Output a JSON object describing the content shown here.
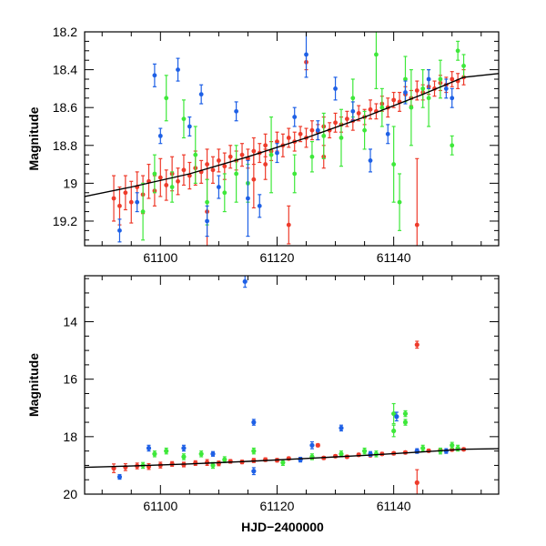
{
  "chart_data": [
    {
      "type": "scatter",
      "panel": "top",
      "xlabel": "",
      "ylabel": "Magnitude",
      "xlim": [
        61087,
        61158
      ],
      "ylim": [
        19.33,
        18.2
      ],
      "y_inverted": true,
      "xticks": [
        61100,
        61120,
        61140
      ],
      "yticks": [
        18.2,
        18.4,
        18.6,
        18.8,
        19,
        19.2
      ],
      "ytick_labels": [
        "18.2",
        "18.4",
        "18.6",
        "18.8",
        "19",
        "19.2"
      ],
      "xtick_labels": [
        "61100",
        "61120",
        "61140"
      ],
      "model_curve": {
        "name": "model",
        "color": "#000000",
        "x": [
          61087,
          61095,
          61105,
          61115,
          61125,
          61135,
          61145,
          61152,
          61158
        ],
        "y": [
          19.07,
          19.02,
          18.95,
          18.86,
          18.76,
          18.65,
          18.53,
          18.44,
          18.42
        ]
      },
      "series": [
        {
          "name": "red",
          "color": "#ee3b2b",
          "x": [
            61092,
            61093,
            61094,
            61095,
            61096,
            61097,
            61098,
            61099,
            61100,
            61101,
            61102,
            61103,
            61104,
            61105,
            61106,
            61107,
            61108,
            61109,
            61110,
            61111,
            61112,
            61113,
            61114,
            61115,
            61116,
            61117,
            61118,
            61119,
            61120,
            61121,
            61122,
            61123,
            61124,
            61125,
            61126,
            61127,
            61128,
            61129,
            61130,
            61131,
            61132,
            61133,
            61134,
            61135,
            61136,
            61137,
            61138,
            61139,
            61140,
            61141,
            61142,
            61143,
            61144,
            61145,
            61146,
            61147,
            61148,
            61149,
            61150,
            61151,
            61152,
            61116,
            61122,
            61125,
            61144,
            61118,
            61128,
            61108
          ],
          "y": [
            19.08,
            19.12,
            19.05,
            19.1,
            19.02,
            19.06,
            18.99,
            19.04,
            18.97,
            19.01,
            18.95,
            18.99,
            18.93,
            18.96,
            18.92,
            18.94,
            18.9,
            18.93,
            18.88,
            18.91,
            18.86,
            18.88,
            18.85,
            18.87,
            18.83,
            18.84,
            18.8,
            18.83,
            18.78,
            18.8,
            18.76,
            18.78,
            18.74,
            18.76,
            18.72,
            18.73,
            18.7,
            18.72,
            18.68,
            18.69,
            18.66,
            18.67,
            18.63,
            18.65,
            18.61,
            18.62,
            18.58,
            18.6,
            18.56,
            18.57,
            18.53,
            18.55,
            18.51,
            18.52,
            18.49,
            18.5,
            18.47,
            18.48,
            18.45,
            18.46,
            18.44,
            18.98,
            19.22,
            18.36,
            19.22,
            18.9,
            18.86,
            19.15
          ],
          "err": [
            0.12,
            0.1,
            0.09,
            0.11,
            0.08,
            0.1,
            0.09,
            0.08,
            0.1,
            0.08,
            0.09,
            0.07,
            0.08,
            0.07,
            0.09,
            0.06,
            0.08,
            0.07,
            0.06,
            0.07,
            0.06,
            0.05,
            0.06,
            0.05,
            0.07,
            0.05,
            0.06,
            0.05,
            0.05,
            0.06,
            0.05,
            0.05,
            0.04,
            0.05,
            0.05,
            0.04,
            0.05,
            0.04,
            0.05,
            0.04,
            0.04,
            0.05,
            0.04,
            0.04,
            0.05,
            0.04,
            0.04,
            0.05,
            0.04,
            0.05,
            0.04,
            0.04,
            0.05,
            0.04,
            0.04,
            0.04,
            0.04,
            0.04,
            0.04,
            0.04,
            0.04,
            0.15,
            0.1,
            0.04,
            0.35,
            0.08,
            0.06,
            0.25
          ]
        },
        {
          "name": "green",
          "color": "#3ee83a",
          "x": [
            61097,
            61099,
            61101,
            61102,
            61104,
            61106,
            61108,
            61111,
            61113,
            61115,
            61119,
            61123,
            61126,
            61128,
            61131,
            61133,
            61135,
            61137,
            61138,
            61140,
            61141,
            61142,
            61143,
            61145,
            61146,
            61148,
            61150,
            61151,
            61152
          ],
          "y": [
            19.15,
            18.95,
            18.55,
            19.02,
            18.66,
            18.85,
            19.1,
            19.05,
            18.95,
            19.0,
            18.85,
            18.95,
            18.86,
            18.75,
            18.76,
            18.55,
            18.72,
            18.32,
            18.6,
            18.9,
            19.1,
            18.45,
            18.6,
            18.5,
            18.55,
            18.45,
            18.8,
            18.3,
            18.38
          ],
          "err": [
            0.15,
            0.1,
            0.12,
            0.08,
            0.1,
            0.15,
            0.12,
            0.1,
            0.15,
            0.1,
            0.2,
            0.1,
            0.08,
            0.12,
            0.15,
            0.1,
            0.1,
            0.18,
            0.1,
            0.2,
            0.15,
            0.12,
            0.2,
            0.1,
            0.15,
            0.1,
            0.05,
            0.05,
            0.06
          ]
        },
        {
          "name": "blue",
          "color": "#1e60e6",
          "x": [
            61093,
            61096,
            61099,
            61100,
            61103,
            61105,
            61107,
            61108,
            61110,
            61113,
            61115,
            61117,
            61120,
            61123,
            61125,
            61127,
            61130,
            61133,
            61136,
            61139,
            61142,
            61146,
            61149,
            61150
          ],
          "y": [
            19.25,
            19.1,
            18.43,
            18.75,
            18.4,
            18.7,
            18.53,
            19.2,
            19.02,
            18.62,
            19.08,
            19.12,
            18.84,
            18.65,
            18.32,
            18.72,
            18.5,
            18.62,
            18.88,
            18.74,
            18.52,
            18.45,
            18.5,
            18.55
          ],
          "err": [
            0.06,
            0.05,
            0.06,
            0.04,
            0.06,
            0.05,
            0.05,
            0.08,
            0.06,
            0.05,
            0.2,
            0.06,
            0.05,
            0.05,
            0.12,
            0.05,
            0.06,
            0.05,
            0.06,
            0.05,
            0.06,
            0.05,
            0.05,
            0.05
          ]
        }
      ]
    },
    {
      "type": "scatter",
      "panel": "bottom",
      "xlabel": "HJD−2400000",
      "ylabel": "Magnitude",
      "xlim": [
        61087,
        61158
      ],
      "ylim": [
        20,
        12.4
      ],
      "y_inverted": true,
      "xticks": [
        61100,
        61120,
        61140
      ],
      "yticks": [
        14,
        16,
        18,
        20
      ],
      "ytick_labels": [
        "14",
        "16",
        "18",
        "20"
      ],
      "xtick_labels": [
        "61100",
        "61120",
        "61140"
      ],
      "model_curve": {
        "name": "model",
        "color": "#000000",
        "x": [
          61087,
          61095,
          61105,
          61115,
          61125,
          61135,
          61145,
          61152,
          61158
        ],
        "y": [
          19.07,
          19.02,
          18.95,
          18.86,
          18.76,
          18.65,
          18.53,
          18.44,
          18.42
        ]
      },
      "series": [
        {
          "name": "red",
          "color": "#ee3b2b",
          "x": [
            61092,
            61094,
            61096,
            61098,
            61100,
            61102,
            61104,
            61106,
            61108,
            61110,
            61112,
            61114,
            61116,
            61118,
            61120,
            61122,
            61124,
            61126,
            61128,
            61130,
            61132,
            61134,
            61136,
            61138,
            61140,
            61142,
            61144,
            61146,
            61148,
            61150,
            61152,
            61144,
            61144,
            61127
          ],
          "y": [
            19.1,
            19.06,
            19.02,
            19.04,
            18.99,
            18.95,
            18.97,
            18.92,
            18.9,
            18.93,
            18.86,
            18.88,
            18.83,
            18.8,
            18.82,
            18.76,
            18.78,
            18.72,
            18.74,
            18.68,
            18.7,
            18.63,
            18.65,
            18.6,
            18.58,
            18.55,
            18.51,
            18.49,
            18.47,
            18.45,
            18.44,
            14.8,
            19.6,
            18.3
          ],
          "err": [
            0.15,
            0.12,
            0.1,
            0.1,
            0.1,
            0.08,
            0.08,
            0.08,
            0.1,
            0.08,
            0.06,
            0.06,
            0.07,
            0.06,
            0.06,
            0.05,
            0.05,
            0.05,
            0.05,
            0.05,
            0.05,
            0.05,
            0.05,
            0.05,
            0.05,
            0.05,
            0.05,
            0.05,
            0.05,
            0.05,
            0.05,
            0.12,
            0.45,
            0.05
          ]
        },
        {
          "name": "green",
          "color": "#3ee83a",
          "x": [
            61097,
            61099,
            61101,
            61104,
            61107,
            61109,
            61111,
            61116,
            61121,
            61126,
            61131,
            61135,
            61137,
            61140,
            61140,
            61142,
            61142,
            61145,
            61148,
            61150,
            61151
          ],
          "y": [
            19.0,
            18.6,
            18.5,
            18.7,
            18.6,
            19.0,
            18.8,
            18.5,
            18.9,
            18.7,
            18.6,
            18.5,
            18.6,
            17.2,
            17.8,
            17.2,
            17.5,
            18.4,
            18.5,
            18.3,
            18.4
          ],
          "err": [
            0.1,
            0.1,
            0.1,
            0.1,
            0.1,
            0.1,
            0.1,
            0.1,
            0.1,
            0.1,
            0.1,
            0.1,
            0.1,
            0.35,
            0.2,
            0.1,
            0.1,
            0.1,
            0.1,
            0.1,
            0.1
          ]
        },
        {
          "name": "blue",
          "color": "#1e60e6",
          "x": [
            61093,
            61098,
            61104,
            61109,
            61114.5,
            61116,
            61116,
            61124,
            61126,
            61131,
            61136,
            61140.5,
            61144,
            61149
          ],
          "y": [
            19.4,
            18.4,
            18.4,
            18.6,
            12.6,
            17.5,
            19.2,
            18.8,
            18.3,
            17.7,
            18.6,
            17.3,
            18.5,
            18.5
          ],
          "err": [
            0.08,
            0.1,
            0.1,
            0.08,
            0.2,
            0.1,
            0.12,
            0.08,
            0.12,
            0.1,
            0.08,
            0.15,
            0.08,
            0.08
          ]
        }
      ]
    }
  ]
}
